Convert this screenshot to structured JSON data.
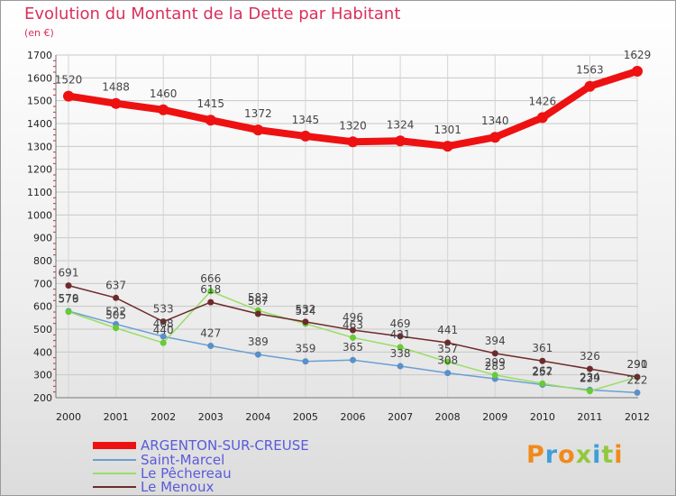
{
  "chart_data": {
    "type": "line",
    "title": "Evolution du Montant de la Dette par Habitant",
    "unit_label": "(en €)",
    "x": [
      "2000",
      "2001",
      "2002",
      "2003",
      "2004",
      "2005",
      "2006",
      "2007",
      "2008",
      "2009",
      "2010",
      "2011",
      "2012"
    ],
    "ylim": [
      200,
      1700
    ],
    "y_ticks": [
      200,
      300,
      400,
      500,
      600,
      700,
      800,
      900,
      1000,
      1100,
      1200,
      1300,
      1400,
      1500,
      1600,
      1700
    ],
    "grid": true,
    "legend_position": "bottom-left",
    "series": [
      {
        "name": "ARGENTON-SUR-CREUSE",
        "color": "#ee1111",
        "marker": "#ee1111",
        "values": [
          1520,
          1488,
          1460,
          1415,
          1372,
          1345,
          1320,
          1324,
          1301,
          1340,
          1426,
          1563,
          1629
        ]
      },
      {
        "name": "Saint-Marcel",
        "color": "#6a9fd4",
        "marker": "#5a8fc8",
        "values": [
          579,
          522,
          468,
          427,
          389,
          359,
          365,
          338,
          308,
          283,
          257,
          234,
          222
        ]
      },
      {
        "name": "Le Pêchereau",
        "color": "#99dd66",
        "marker": "#66cc33",
        "values": [
          576,
          505,
          440,
          666,
          582,
          524,
          463,
          421,
          357,
          299,
          262,
          229,
          290
        ]
      },
      {
        "name": "Le Menoux",
        "color": "#6e2a2a",
        "marker": "#6e2a2a",
        "values": [
          691,
          637,
          533,
          618,
          567,
          532,
          496,
          469,
          441,
          394,
          361,
          326,
          291
        ]
      }
    ]
  },
  "brand": {
    "text": "Proxiti",
    "colors": [
      "#f08a1c",
      "#3e9fd9",
      "#f08a1c",
      "#92c83e",
      "#3e9fd9",
      "#92c83e",
      "#f08a1c"
    ]
  }
}
